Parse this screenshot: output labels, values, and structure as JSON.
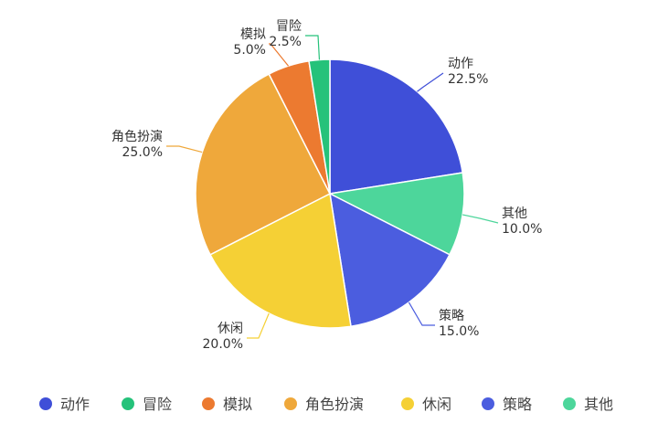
{
  "chart_data": {
    "type": "pie",
    "slices": [
      {
        "name": "动作",
        "value": 22.5,
        "label": "22.5%",
        "color": "#3f4fd8"
      },
      {
        "name": "其他",
        "value": 10.0,
        "label": "10.0%",
        "color": "#4dd69b"
      },
      {
        "name": "策略",
        "value": 15.0,
        "label": "15.0%",
        "color": "#4b5ddf"
      },
      {
        "name": "休闲",
        "value": 20.0,
        "label": "20.0%",
        "color": "#f5d035"
      },
      {
        "name": "角色扮演",
        "value": 25.0,
        "label": "25.0%",
        "color": "#efa83b"
      },
      {
        "name": "模拟",
        "value": 5.0,
        "label": "5.0%",
        "color": "#ec7a30"
      },
      {
        "name": "冒险",
        "value": 2.5,
        "label": "2.5%",
        "color": "#25c27a"
      }
    ],
    "legend": {
      "position": "bottom",
      "items": [
        {
          "name": "动作",
          "color": "#3f4fd8"
        },
        {
          "name": "冒险",
          "color": "#25c27a"
        },
        {
          "name": "模拟",
          "color": "#ec7a30"
        },
        {
          "name": "角色扮演",
          "color": "#efa83b"
        },
        {
          "name": "休闲",
          "color": "#f5d035"
        },
        {
          "name": "策略",
          "color": "#4b5ddf"
        },
        {
          "name": "其他",
          "color": "#4dd69b"
        }
      ]
    }
  }
}
